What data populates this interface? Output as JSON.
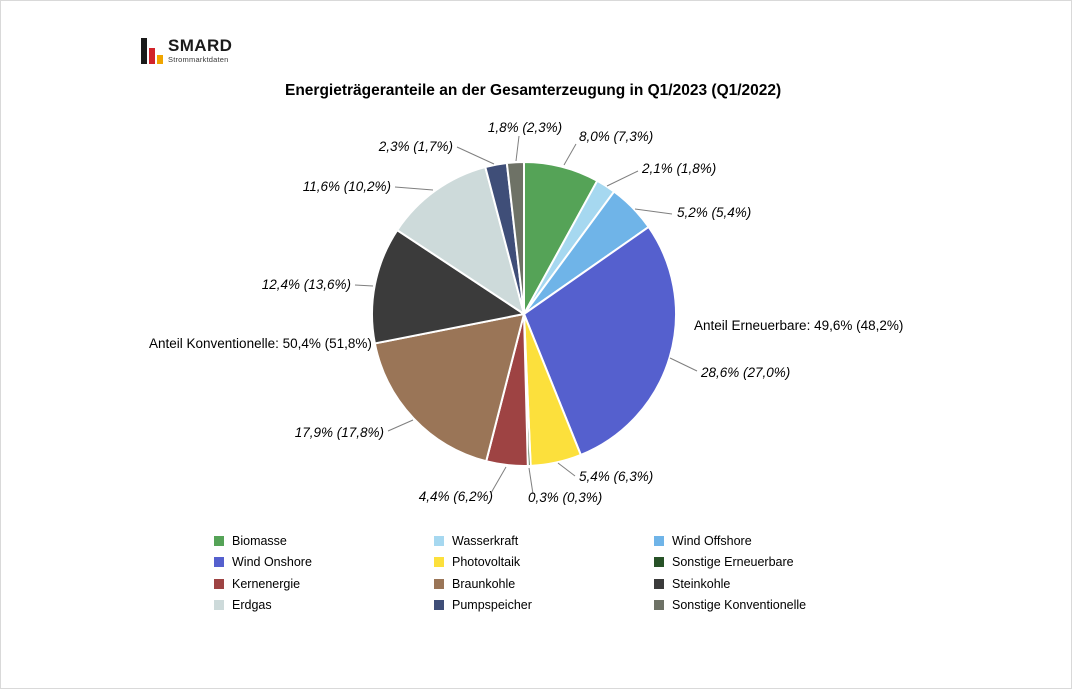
{
  "logo": {
    "title": "SMARD",
    "subtitle": "Strommarktdaten",
    "bar_colors": [
      "#1a1a1a",
      "#d2232a",
      "#f0a500"
    ]
  },
  "chart_data": {
    "type": "pie",
    "title": "Energieträgeranteile an der Gesamterzeugung in Q1/2023 (Q1/2022)",
    "unit": "%",
    "direction": "clockwise",
    "start_angle_deg": 0,
    "legend": {
      "position": "bottom",
      "columns": 3
    },
    "slices": [
      {
        "label": "Biomasse",
        "value": 8.0,
        "previous": 7.3,
        "display": "8,0% (7,3%)",
        "color": "#55A357"
      },
      {
        "label": "Wasserkraft",
        "value": 2.1,
        "previous": 1.8,
        "display": "2,1% (1,8%)",
        "color": "#A6D8F0"
      },
      {
        "label": "Wind Offshore",
        "value": 5.2,
        "previous": 5.4,
        "display": "5,2% (5,4%)",
        "color": "#6FB4E8"
      },
      {
        "label": "Wind Onshore",
        "value": 28.6,
        "previous": 27.0,
        "display": "28,6% (27,0%)",
        "color": "#5560CE"
      },
      {
        "label": "Photovoltaik",
        "value": 5.4,
        "previous": 6.3,
        "display": "5,4% (6,3%)",
        "color": "#FCE03C"
      },
      {
        "label": "Sonstige Erneuerbare",
        "value": 0.3,
        "previous": 0.3,
        "display": "0,3% (0,3%)",
        "color": "#275227"
      },
      {
        "label": "Kernenergie",
        "value": 4.4,
        "previous": 6.2,
        "display": "4,4% (6,2%)",
        "color": "#9E4343"
      },
      {
        "label": "Braunkohle",
        "value": 17.9,
        "previous": 17.8,
        "display": "17,9% (17,8%)",
        "color": "#9A7557"
      },
      {
        "label": "Steinkohle",
        "value": 12.4,
        "previous": 13.6,
        "display": "12,4% (13,6%)",
        "color": "#3B3B3B"
      },
      {
        "label": "Erdgas",
        "value": 11.6,
        "previous": 10.2,
        "display": "11,6% (10,2%)",
        "color": "#CDDADA"
      },
      {
        "label": "Pumpspeicher",
        "value": 2.3,
        "previous": 1.7,
        "display": "2,3% (1,7%)",
        "color": "#3F4E78"
      },
      {
        "label": "Sonstige Konventionelle",
        "value": 1.8,
        "previous": 2.3,
        "display": "1,8% (2,3%)",
        "color": "#6E7266"
      }
    ],
    "annotations": [
      {
        "text": "Anteil Erneuerbare: 49,6% (48,2%)",
        "side": "right"
      },
      {
        "text": "Anteil Konventionelle: 50,4% (51,8%)",
        "side": "left"
      }
    ]
  }
}
